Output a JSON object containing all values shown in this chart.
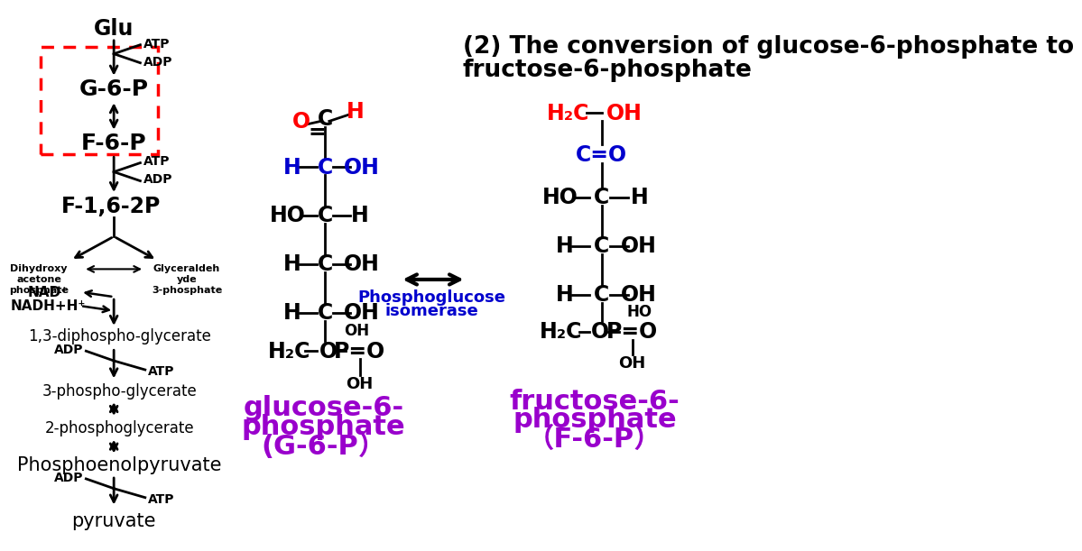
{
  "bg_color": "#ffffff",
  "black": "#000000",
  "red": "#ff0000",
  "blue": "#0000cd",
  "purple": "#9900cc",
  "title_line1": "(2) The conversion of glucose-6-phosphate to",
  "title_line2": "fructose-6-phosphate"
}
